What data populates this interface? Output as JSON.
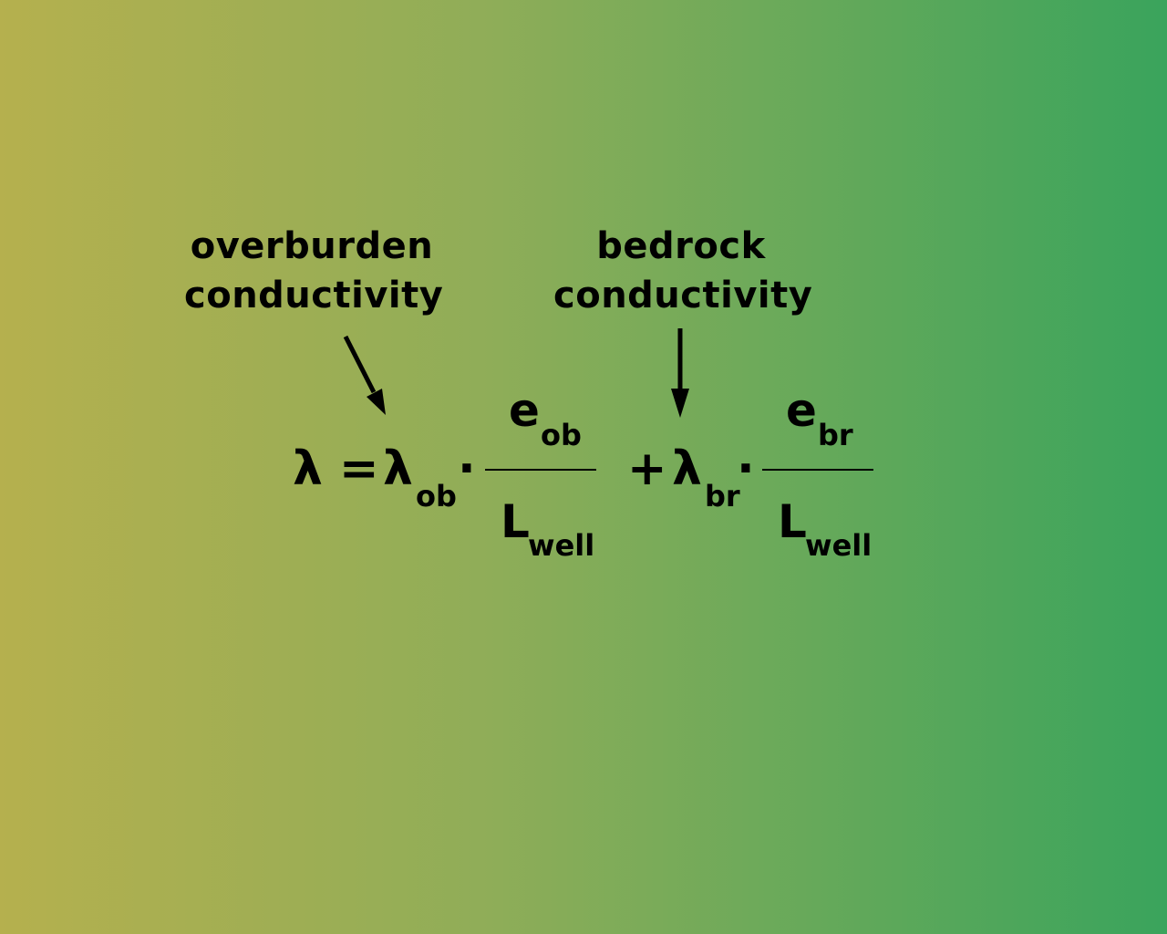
{
  "labels": {
    "overburden": {
      "line1": "overburden",
      "line2": "conductivity"
    },
    "bedrock": {
      "line1": "bedrock",
      "line2": "conductivity"
    }
  },
  "equation": {
    "lhs": "λ",
    "equals": "=",
    "term1": {
      "coef": "λ",
      "coef_sub": "ob",
      "dot": "·",
      "num": "e",
      "num_sub": "ob",
      "den": "L",
      "den_sub": "well"
    },
    "plus": "+",
    "term2": {
      "coef": "λ",
      "coef_sub": "br",
      "dot": "·",
      "num": "e",
      "num_sub": "br",
      "den": "L",
      "den_sub": "well"
    }
  },
  "colors": {
    "gradient_left": "#b5b04e",
    "gradient_right": "#3aa45c",
    "ink": "#000000"
  }
}
